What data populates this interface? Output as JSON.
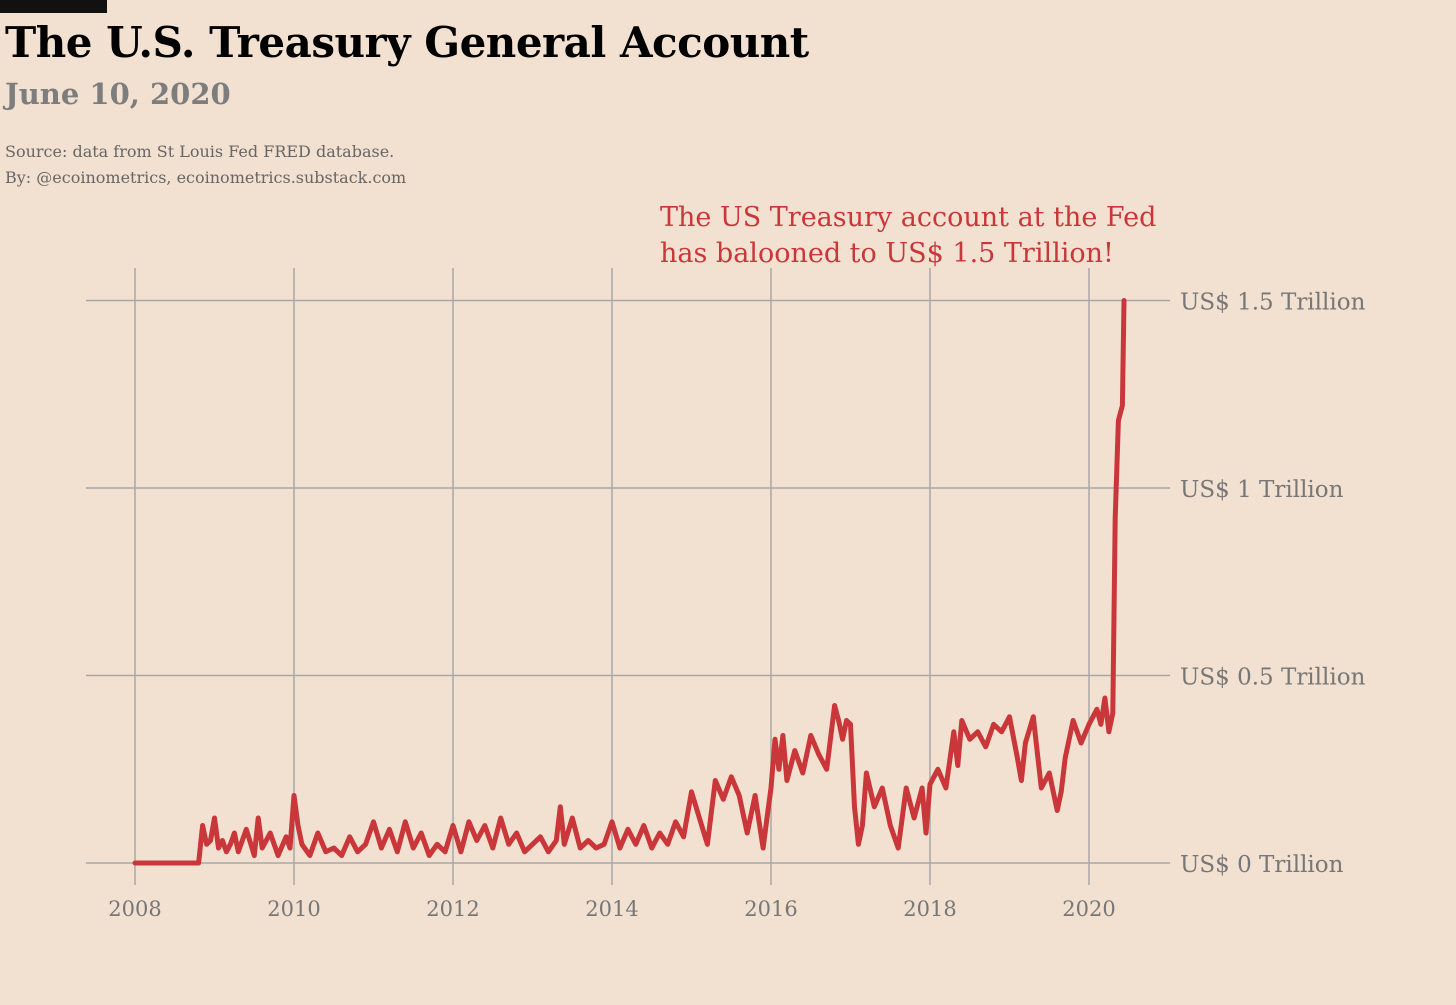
{
  "header": {
    "title": "The U.S. Treasury General Account",
    "subtitle": "June 10, 2020",
    "source_line": "Source: data from  St Louis Fed FRED database.",
    "byline": "By: @ecoinometrics, ecoinometrics.substack.com"
  },
  "chart_data": {
    "type": "line",
    "title": "The U.S. Treasury General Account",
    "subtitle": "June 10, 2020",
    "xlabel": "",
    "ylabel": "",
    "xlim": [
      2007.7,
      2021.0
    ],
    "ylim": [
      -0.05,
      1.6
    ],
    "x_ticks": [
      2008,
      2010,
      2012,
      2014,
      2016,
      2018,
      2020
    ],
    "x_tick_labels": [
      "2008",
      "2010",
      "2012",
      "2014",
      "2016",
      "2018",
      "2020"
    ],
    "y_ticks": [
      0,
      0.5,
      1,
      1.5
    ],
    "y_tick_labels": [
      "US$ 0 Trillion",
      "US$ 0.5 Trillion",
      "US$ 1 Trillion",
      "US$ 1.5 Trillion"
    ],
    "y_axis_position": "right",
    "grid": true,
    "line_color": "#c9373a",
    "grid_color": "#a8a8a8",
    "annotation": {
      "lines": [
        "The US Treasury account  at the Fed",
        "has balooned to US$ 1.5 Trillion!"
      ],
      "color": "#c9373a"
    },
    "series": [
      {
        "name": "",
        "x": [
          2008.0,
          2008.3,
          2008.6,
          2008.8,
          2008.85,
          2008.9,
          2008.95,
          2009.0,
          2009.05,
          2009.1,
          2009.15,
          2009.2,
          2009.25,
          2009.3,
          2009.4,
          2009.5,
          2009.55,
          2009.6,
          2009.7,
          2009.8,
          2009.9,
          2009.95,
          2010.0,
          2010.05,
          2010.1,
          2010.2,
          2010.3,
          2010.4,
          2010.5,
          2010.6,
          2010.7,
          2010.8,
          2010.9,
          2011.0,
          2011.1,
          2011.2,
          2011.3,
          2011.4,
          2011.5,
          2011.6,
          2011.7,
          2011.8,
          2011.9,
          2012.0,
          2012.1,
          2012.2,
          2012.3,
          2012.4,
          2012.5,
          2012.6,
          2012.7,
          2012.8,
          2012.9,
          2013.0,
          2013.1,
          2013.2,
          2013.3,
          2013.35,
          2013.4,
          2013.5,
          2013.6,
          2013.7,
          2013.8,
          2013.9,
          2014.0,
          2014.1,
          2014.2,
          2014.3,
          2014.4,
          2014.5,
          2014.6,
          2014.7,
          2014.8,
          2014.9,
          2015.0,
          2015.1,
          2015.2,
          2015.3,
          2015.4,
          2015.5,
          2015.6,
          2015.7,
          2015.8,
          2015.9,
          2015.95,
          2016.0,
          2016.05,
          2016.1,
          2016.15,
          2016.2,
          2016.3,
          2016.4,
          2016.5,
          2016.6,
          2016.7,
          2016.8,
          2016.85,
          2016.9,
          2016.95,
          2017.0,
          2017.05,
          2017.1,
          2017.15,
          2017.2,
          2017.3,
          2017.4,
          2017.5,
          2017.6,
          2017.7,
          2017.8,
          2017.9,
          2017.95,
          2018.0,
          2018.1,
          2018.2,
          2018.3,
          2018.35,
          2018.4,
          2018.5,
          2018.6,
          2018.7,
          2018.8,
          2018.9,
          2019.0,
          2019.1,
          2019.15,
          2019.2,
          2019.3,
          2019.4,
          2019.5,
          2019.6,
          2019.65,
          2019.7,
          2019.8,
          2019.9,
          2020.0,
          2020.1,
          2020.15,
          2020.2,
          2020.25,
          2020.3,
          2020.33,
          2020.37,
          2020.42,
          2020.44
        ],
        "y": [
          0.0,
          0.0,
          0.0,
          0.0,
          0.1,
          0.05,
          0.06,
          0.12,
          0.04,
          0.06,
          0.03,
          0.05,
          0.08,
          0.03,
          0.09,
          0.02,
          0.12,
          0.04,
          0.08,
          0.02,
          0.07,
          0.04,
          0.18,
          0.1,
          0.05,
          0.02,
          0.08,
          0.03,
          0.04,
          0.02,
          0.07,
          0.03,
          0.05,
          0.11,
          0.04,
          0.09,
          0.03,
          0.11,
          0.04,
          0.08,
          0.02,
          0.05,
          0.03,
          0.1,
          0.03,
          0.11,
          0.06,
          0.1,
          0.04,
          0.12,
          0.05,
          0.08,
          0.03,
          0.05,
          0.07,
          0.03,
          0.06,
          0.15,
          0.05,
          0.12,
          0.04,
          0.06,
          0.04,
          0.05,
          0.11,
          0.04,
          0.09,
          0.05,
          0.1,
          0.04,
          0.08,
          0.05,
          0.11,
          0.07,
          0.19,
          0.12,
          0.05,
          0.22,
          0.17,
          0.23,
          0.18,
          0.08,
          0.18,
          0.04,
          0.12,
          0.2,
          0.33,
          0.25,
          0.34,
          0.22,
          0.3,
          0.24,
          0.34,
          0.29,
          0.25,
          0.42,
          0.38,
          0.33,
          0.38,
          0.37,
          0.15,
          0.05,
          0.1,
          0.24,
          0.15,
          0.2,
          0.1,
          0.04,
          0.2,
          0.12,
          0.2,
          0.08,
          0.21,
          0.25,
          0.2,
          0.35,
          0.26,
          0.38,
          0.33,
          0.35,
          0.31,
          0.37,
          0.35,
          0.39,
          0.28,
          0.22,
          0.32,
          0.39,
          0.2,
          0.24,
          0.14,
          0.19,
          0.28,
          0.38,
          0.32,
          0.37,
          0.41,
          0.37,
          0.44,
          0.35,
          0.4,
          0.92,
          1.18,
          1.22,
          1.5
        ]
      }
    ]
  }
}
